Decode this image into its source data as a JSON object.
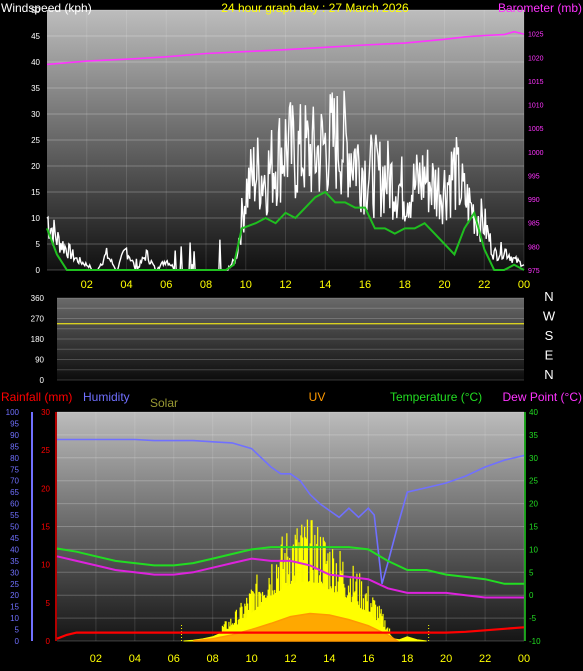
{
  "colors": {
    "background": "#000000",
    "windspeed": "#ffffff",
    "windgust_line": "#1fbf1f",
    "barometer": "#ff33ff",
    "direction_line": "#d8d020",
    "rainfall": "#ff0000",
    "humidity": "#7070ff",
    "solar": "#ffff00",
    "uv": "#ff9900",
    "temperature": "#22dd22",
    "dewpoint": "#dd22dd",
    "title_yellow": "#ffff00",
    "axis_text": "#ffffff"
  },
  "labels": {
    "windspeed": "Windspeed (kph)",
    "title": "24 hour graph day : 27 March 2026",
    "barometer": "Barometer (mb)",
    "rainfall": "Rainfall (mm)",
    "humidity": "Humidity",
    "solar": "Solar",
    "uv": "UV",
    "temperature": "Temperature (°C)",
    "dewpoint": "Dew Point (°C)"
  },
  "compass": [
    "N",
    "W",
    "S",
    "E",
    "N"
  ],
  "x_ticks": [
    "02",
    "04",
    "06",
    "08",
    "10",
    "12",
    "14",
    "16",
    "18",
    "20",
    "22",
    "00"
  ],
  "chart_data": [
    {
      "type": "line",
      "name": "wind-barometer",
      "x_unit": "hour",
      "xlim": [
        0,
        24
      ],
      "ylim": [
        0,
        50
      ],
      "yticks": [
        0,
        5,
        10,
        15,
        20,
        25,
        30,
        35,
        40,
        45,
        50
      ],
      "y2lim": [
        975,
        1030
      ],
      "y2ticks": [
        975,
        980,
        985,
        990,
        995,
        1000,
        1005,
        1010,
        1015,
        1020,
        1025
      ],
      "series": [
        {
          "key": "windspeed",
          "axis": "left",
          "x": [
            0,
            0.5,
            1,
            1.5,
            2,
            2.5,
            3,
            3.5,
            4,
            4.5,
            5,
            5.5,
            6,
            6.5,
            7,
            7.5,
            8,
            8.5,
            9,
            9.5,
            10,
            10.5,
            11,
            11.5,
            12,
            12.5,
            13,
            13.5,
            14,
            14.5,
            15,
            15.5,
            16,
            16.5,
            17,
            17.5,
            18,
            18.5,
            19,
            19.5,
            20,
            20.5,
            21,
            21.5,
            22,
            22.5,
            23,
            23.5,
            24
          ],
          "values": [
            10,
            6,
            4,
            2,
            1,
            0,
            3,
            0,
            4,
            0,
            3,
            0,
            2,
            0,
            0,
            0,
            0,
            0,
            0,
            2,
            15,
            19,
            18,
            21,
            24,
            22,
            23,
            22,
            24,
            25,
            24,
            22,
            19,
            18,
            18,
            17,
            15,
            16,
            18,
            16,
            16,
            19,
            14,
            11,
            9,
            3,
            4,
            2,
            1
          ]
        },
        {
          "key": "windgust_line",
          "axis": "left",
          "x": [
            0,
            0.5,
            1,
            2,
            3,
            4,
            5,
            6,
            7,
            8,
            9,
            9.4,
            9.8,
            10.5,
            11,
            11.5,
            12,
            12.5,
            13,
            13.5,
            14,
            14.5,
            15,
            15.5,
            16,
            16.5,
            17,
            17.5,
            18,
            18.5,
            19,
            19.5,
            20,
            20.5,
            21,
            21.5,
            22,
            22.5,
            23,
            23.5,
            24
          ],
          "values": [
            8,
            3,
            0,
            0,
            0,
            0,
            0,
            0,
            0,
            0,
            0,
            1,
            8,
            9,
            10,
            9,
            11,
            10,
            12,
            14,
            15,
            13,
            13,
            12,
            12,
            8,
            8,
            7,
            8,
            8,
            9,
            7,
            5,
            3,
            8,
            11,
            4,
            0,
            0,
            1,
            0
          ]
        },
        {
          "key": "barometer",
          "axis": "right",
          "x": [
            0,
            2,
            4,
            6,
            8,
            10,
            12,
            14,
            16,
            18,
            20,
            21,
            22,
            23,
            23.5,
            24
          ],
          "values": [
            1018.5,
            1019.2,
            1019.6,
            1020.1,
            1020.8,
            1021.2,
            1021.6,
            1022.1,
            1022.6,
            1023.0,
            1023.8,
            1024.3,
            1024.6,
            1024.8,
            1025.4,
            1024.9
          ]
        }
      ]
    },
    {
      "type": "line",
      "name": "wind-direction",
      "xlim": [
        0,
        24
      ],
      "ylim": [
        0,
        360
      ],
      "yticks": [
        0,
        45,
        90,
        135,
        180,
        225,
        270,
        315,
        360
      ],
      "series": [
        {
          "key": "direction",
          "x": [
            0,
            24
          ],
          "values": [
            247,
            247
          ]
        }
      ]
    },
    {
      "type": "line",
      "name": "rain-humidity-solar-uv-temperature",
      "xlim": [
        0,
        24
      ],
      "yticks_rain": [
        0,
        5,
        10,
        15,
        20,
        25,
        30
      ],
      "rain_lim": [
        0,
        30
      ],
      "yticks_humidity": [
        0,
        5,
        10,
        15,
        20,
        25,
        30,
        35,
        40,
        45,
        50,
        55,
        60,
        65,
        70,
        75,
        80,
        85,
        90,
        95,
        100
      ],
      "humidity_lim": [
        0,
        100
      ],
      "yticks_temp": [
        -10,
        -5,
        0,
        5,
        10,
        15,
        20,
        25,
        30,
        35,
        40
      ],
      "temp_lim": [
        -10,
        40
      ],
      "series": [
        {
          "key": "humidity",
          "axis": "humidity",
          "x": [
            0,
            1,
            2,
            3,
            4,
            5,
            6,
            7,
            8,
            9,
            10,
            10.5,
            11,
            11.5,
            12,
            12.5,
            13,
            13.5,
            14,
            14.5,
            15,
            15.5,
            16,
            16.3,
            16.7,
            17,
            17.5,
            18,
            19,
            20,
            21,
            22,
            23,
            24
          ],
          "values": [
            88,
            88,
            88,
            88,
            88,
            87.5,
            87.5,
            87.5,
            87,
            86.5,
            84,
            80,
            76,
            73,
            73,
            70,
            64,
            60,
            57,
            54,
            58,
            54,
            58,
            55,
            25,
            34,
            50,
            65,
            67,
            69,
            72,
            76,
            79,
            81
          ]
        },
        {
          "key": "temperature",
          "axis": "temp",
          "x": [
            0,
            1,
            2,
            3,
            4,
            5,
            6,
            7,
            8,
            9,
            10,
            11,
            12,
            13,
            14,
            15,
            16,
            17,
            18,
            19,
            20,
            21,
            22,
            23,
            24
          ],
          "values": [
            10.2,
            9.5,
            8.5,
            7.5,
            7.0,
            6.5,
            6.5,
            7.0,
            8.0,
            9.0,
            10.0,
            10.5,
            10.5,
            10.5,
            10.5,
            10.5,
            10.0,
            7.5,
            5.5,
            5.5,
            4.5,
            4.0,
            3.5,
            2.5,
            2.5
          ]
        },
        {
          "key": "dewpoint",
          "axis": "temp",
          "x": [
            0,
            1,
            2,
            3,
            4,
            5,
            6,
            7,
            8,
            9,
            10,
            11,
            12,
            13,
            14,
            15,
            16,
            17,
            18,
            19,
            20,
            21,
            22,
            23,
            24
          ],
          "values": [
            8.5,
            7.5,
            6.5,
            5.5,
            5.0,
            4.5,
            4.5,
            5.0,
            6.0,
            7.0,
            8.0,
            7.5,
            7.5,
            6.5,
            4.5,
            4.0,
            3.5,
            1.5,
            0.5,
            0.5,
            0.5,
            0.0,
            -0.5,
            -0.5,
            -0.5
          ]
        },
        {
          "key": "rainfall",
          "axis": "rain",
          "x": [
            0,
            0.5,
            1,
            6,
            8,
            10,
            12,
            14,
            16,
            18,
            19,
            20,
            21,
            22,
            23,
            24
          ],
          "values": [
            0.3,
            0.8,
            1.1,
            1.1,
            1.1,
            1.1,
            1.1,
            1.1,
            1.1,
            1.1,
            1.1,
            1.1,
            1.2,
            1.4,
            1.6,
            1.8
          ]
        },
        {
          "key": "solar",
          "axis": "rain",
          "x": [
            6.5,
            7,
            7.5,
            8,
            8.5,
            9,
            9.5,
            10,
            10.5,
            11,
            11.5,
            12,
            12.5,
            13,
            13.5,
            14,
            14.5,
            15,
            15.5,
            16,
            16.5,
            17,
            17.3,
            17.6,
            18,
            18.5,
            19
          ],
          "values": [
            0,
            0.2,
            0.5,
            1,
            2,
            3,
            4.5,
            6.5,
            8.5,
            10.5,
            12,
            13.5,
            14,
            14,
            13.5,
            12,
            11,
            9.5,
            8,
            6.5,
            4.5,
            2,
            0.5,
            0.3,
            1,
            0.3,
            0
          ]
        },
        {
          "key": "uv",
          "axis": "rain",
          "x": [
            7,
            8,
            9,
            10,
            11,
            12,
            13,
            14,
            15,
            16,
            17,
            17.5
          ],
          "values": [
            0,
            0.3,
            0.8,
            1.5,
            2.3,
            3.2,
            3.6,
            3.4,
            2.8,
            2.0,
            0.8,
            0
          ]
        }
      ]
    }
  ]
}
